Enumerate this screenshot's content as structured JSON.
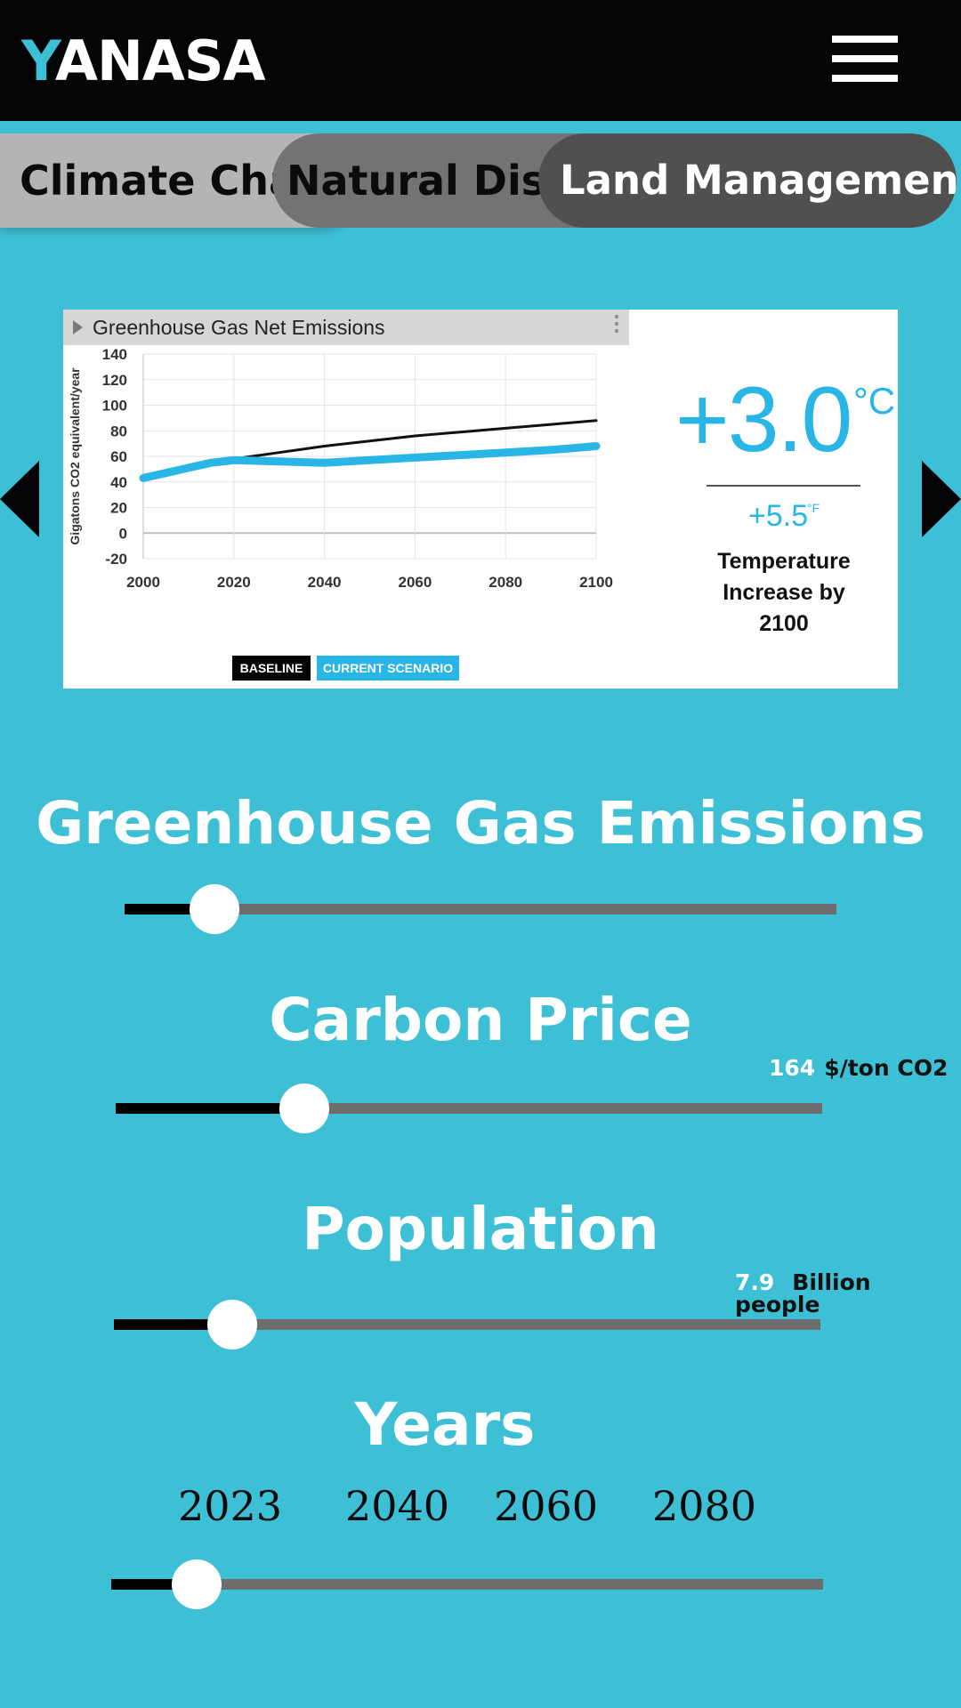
{
  "header": {
    "logo_first": "Y",
    "logo_rest": "ANASA",
    "menu_icon": "hamburger-menu-icon"
  },
  "tabs": [
    {
      "label": "Climate Change",
      "visible_text": "Climate Chai"
    },
    {
      "label": "Natural Disasters",
      "visible_text": "Natural Disa"
    },
    {
      "label": "Land Management",
      "visible_text": "Land Management",
      "active": true
    }
  ],
  "nav": {
    "prev_icon": "triangle-left-icon",
    "next_icon": "triangle-right-icon"
  },
  "chart_panel": {
    "title": "Greenhouse Gas Net Emissions",
    "temperature_c": "+3.0",
    "temperature_c_unit": "°C",
    "temperature_f": "+5.5",
    "temperature_f_unit": "°F",
    "caption_line1": "Temperature",
    "caption_line2": "Increase by",
    "caption_line3": "2100"
  },
  "chart_data": {
    "type": "line",
    "title": "Greenhouse Gas Net Emissions",
    "xlabel": "",
    "ylabel": "Gigatons CO2 equivalent/year",
    "xlim": [
      2000,
      2100
    ],
    "ylim": [
      -20,
      140
    ],
    "x_ticks": [
      2000,
      2020,
      2040,
      2060,
      2080,
      2100
    ],
    "y_ticks": [
      140,
      120,
      100,
      80,
      60,
      40,
      20,
      0,
      -20
    ],
    "grid": true,
    "legend": [
      "BASELINE",
      "CURRENT SCENARIO"
    ],
    "legend_position": "bottom",
    "series": [
      {
        "name": "BASELINE",
        "color": "#111111",
        "x": [
          2000,
          2005,
          2010,
          2015,
          2020,
          2030,
          2040,
          2050,
          2060,
          2070,
          2080,
          2090,
          2100
        ],
        "y": [
          43,
          47,
          51,
          55,
          58,
          63,
          68,
          72,
          76,
          79,
          82,
          85,
          88
        ]
      },
      {
        "name": "CURRENT SCENARIO",
        "color": "#29b6e6",
        "x": [
          2000,
          2005,
          2010,
          2015,
          2020,
          2030,
          2040,
          2050,
          2060,
          2070,
          2080,
          2090,
          2100
        ],
        "y": [
          43,
          47,
          51,
          55,
          57,
          56,
          55,
          57,
          59,
          61,
          63,
          65,
          68
        ]
      }
    ]
  },
  "sliders": {
    "ghg": {
      "title": "Greenhouse Gas Emissions",
      "fraction": 0.126
    },
    "carbon": {
      "title": "Carbon Price",
      "value": "164",
      "unit": "$/ton CO2",
      "fraction": 0.267
    },
    "population": {
      "title": "Population",
      "value": "7.9",
      "unit": "Billion people",
      "fraction": 0.168
    },
    "years": {
      "title": "Years",
      "ticks": [
        "2023",
        "2040",
        "2060",
        "2080"
      ],
      "fraction": 0.12
    }
  },
  "colors": {
    "background": "#3dbfd5",
    "header": "#050507",
    "accent": "#3dbfd5",
    "chart_blue": "#29b6e6",
    "track": "#6d6d6d"
  }
}
